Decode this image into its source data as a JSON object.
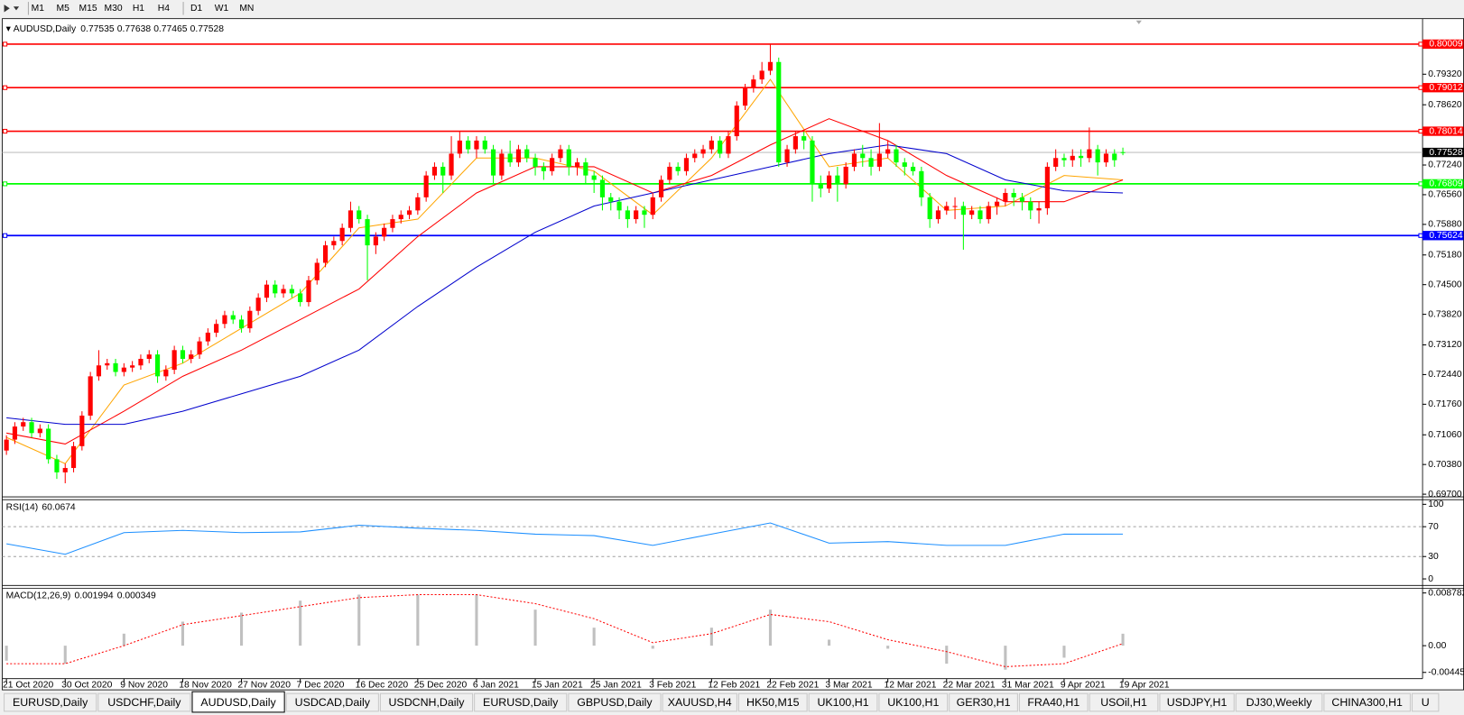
{
  "toolbar": {
    "timeframes": [
      "M1",
      "M5",
      "M15",
      "M30",
      "H1",
      "H4",
      "D1",
      "W1",
      "MN"
    ]
  },
  "chart_data": {
    "type": "candlestick",
    "symbol": "AUDUSD,Daily",
    "up_color": "#ff0000",
    "down_color": "#00ff00",
    "xlim": [
      -0.5,
      168.7
    ],
    "xticks": [
      {
        "value": 0,
        "label": "21 Oct 2020"
      },
      {
        "value": 7,
        "label": "30 Oct 2020"
      },
      {
        "value": 14,
        "label": "9 Nov 2020"
      },
      {
        "value": 21,
        "label": "18 Nov 2020"
      },
      {
        "value": 28,
        "label": "27 Nov 2020"
      },
      {
        "value": 35,
        "label": "7 Dec 2020"
      },
      {
        "value": 42,
        "label": "16 Dec 2020"
      },
      {
        "value": 49,
        "label": "25 Dec 2020"
      },
      {
        "value": 56,
        "label": "6 Jan 2021"
      },
      {
        "value": 63,
        "label": "15 Jan 2021"
      },
      {
        "value": 70,
        "label": "25 Jan 2021"
      },
      {
        "value": 77,
        "label": "3 Feb 2021"
      },
      {
        "value": 84,
        "label": "12 Feb 2021"
      },
      {
        "value": 91,
        "label": "22 Feb 2021"
      },
      {
        "value": 98,
        "label": "3 Mar 2021"
      },
      {
        "value": 105,
        "label": "12 Mar 2021"
      },
      {
        "value": 112,
        "label": "22 Mar 2021"
      },
      {
        "value": 119,
        "label": "31 Mar 2021"
      },
      {
        "value": 126,
        "label": "9 Apr 2021"
      },
      {
        "value": 133,
        "label": "19 Apr 2021"
      }
    ],
    "ylim": [
      0.6966,
      0.8055
    ],
    "yticks": [
      {
        "value": 0.7932,
        "label": "0.79320"
      },
      {
        "value": 0.7862,
        "label": "0.78620"
      },
      {
        "value": 0.7724,
        "label": "0.77240"
      },
      {
        "value": 0.7656,
        "label": "0.76560"
      },
      {
        "value": 0.7588,
        "label": "0.75880"
      },
      {
        "value": 0.7518,
        "label": "0.75180"
      },
      {
        "value": 0.745,
        "label": "0.74500"
      },
      {
        "value": 0.7382,
        "label": "0.73820"
      },
      {
        "value": 0.7312,
        "label": "0.73120"
      },
      {
        "value": 0.7244,
        "label": "0.72440"
      },
      {
        "value": 0.7176,
        "label": "0.71760"
      },
      {
        "value": 0.7106,
        "label": "0.71060"
      },
      {
        "value": 0.7038,
        "label": "0.70380"
      },
      {
        "value": 0.697,
        "label": "0.69700"
      }
    ],
    "levels": [
      {
        "value": 0.80009,
        "color": "#ff0000"
      },
      {
        "value": 0.79012,
        "color": "#ff0000"
      },
      {
        "value": 0.78014,
        "color": "#ff0000"
      },
      {
        "value": 0.76809,
        "color": "#00ff00"
      },
      {
        "value": 0.75624,
        "color": "#0000ff"
      }
    ],
    "open": [
      0.707,
      0.7095,
      0.7125,
      0.7135,
      0.711,
      0.712,
      0.705,
      0.702,
      0.703,
      0.708,
      0.715,
      0.724,
      0.7265,
      0.727,
      0.725,
      0.726,
      0.7265,
      0.728,
      0.729,
      0.724,
      0.7255,
      0.73,
      0.728,
      0.729,
      0.732,
      0.734,
      0.736,
      0.738,
      0.737,
      0.735,
      0.739,
      0.742,
      0.745,
      0.743,
      0.744,
      0.743,
      0.741,
      0.746,
      0.75,
      0.754,
      0.755,
      0.758,
      0.762,
      0.76,
      0.754,
      0.756,
      0.758,
      0.76,
      0.761,
      0.762,
      0.765,
      0.77,
      0.772,
      0.77,
      0.775,
      0.778,
      0.776,
      0.778,
      0.776,
      0.77,
      0.775,
      0.773,
      0.776,
      0.774,
      0.772,
      0.771,
      0.774,
      0.776,
      0.772,
      0.773,
      0.77,
      0.769,
      0.765,
      0.764,
      0.762,
      0.76,
      0.762,
      0.761,
      0.765,
      0.769,
      0.772,
      0.771,
      0.774,
      0.775,
      0.776,
      0.778,
      0.775,
      0.779,
      0.786,
      0.79,
      0.792,
      0.794,
      0.796,
      0.773,
      0.776,
      0.779,
      0.778,
      0.768,
      0.767,
      0.77,
      0.768,
      0.772,
      0.775,
      0.774,
      0.772,
      0.775,
      0.776,
      0.773,
      0.772,
      0.771,
      0.765,
      0.76,
      0.762,
      0.763,
      0.763,
      0.761,
      0.762,
      0.76,
      0.763,
      0.764,
      0.766,
      0.765,
      0.764,
      0.762,
      0.7625,
      0.772,
      0.774,
      0.7735,
      0.7745,
      0.774,
      0.776,
      0.773,
      0.775,
      0.77535
    ],
    "high": [
      0.7105,
      0.7135,
      0.7145,
      0.7145,
      0.713,
      0.713,
      0.706,
      0.704,
      0.709,
      0.716,
      0.725,
      0.73,
      0.728,
      0.728,
      0.727,
      0.7275,
      0.729,
      0.73,
      0.73,
      0.7265,
      0.731,
      0.731,
      0.73,
      0.733,
      0.735,
      0.737,
      0.739,
      0.739,
      0.738,
      0.74,
      0.743,
      0.746,
      0.746,
      0.745,
      0.745,
      0.744,
      0.747,
      0.751,
      0.755,
      0.756,
      0.759,
      0.764,
      0.763,
      0.761,
      0.757,
      0.759,
      0.761,
      0.762,
      0.763,
      0.766,
      0.771,
      0.773,
      0.773,
      0.779,
      0.78,
      0.779,
      0.779,
      0.779,
      0.777,
      0.776,
      0.778,
      0.777,
      0.777,
      0.775,
      0.773,
      0.775,
      0.777,
      0.777,
      0.774,
      0.774,
      0.771,
      0.77,
      0.766,
      0.765,
      0.763,
      0.763,
      0.763,
      0.766,
      0.77,
      0.773,
      0.773,
      0.775,
      0.776,
      0.777,
      0.779,
      0.779,
      0.78,
      0.787,
      0.791,
      0.793,
      0.796,
      0.8001,
      0.797,
      0.777,
      0.78,
      0.78,
      0.779,
      0.77,
      0.771,
      0.772,
      0.773,
      0.776,
      0.777,
      0.776,
      0.782,
      0.778,
      0.777,
      0.774,
      0.773,
      0.772,
      0.766,
      0.763,
      0.764,
      0.765,
      0.764,
      0.763,
      0.763,
      0.764,
      0.765,
      0.767,
      0.767,
      0.766,
      0.765,
      0.764,
      0.773,
      0.776,
      0.775,
      0.776,
      0.776,
      0.781,
      0.777,
      0.776,
      0.776,
      0.77638
    ],
    "low": [
      0.706,
      0.7085,
      0.7115,
      0.71,
      0.71,
      0.704,
      0.7005,
      0.6995,
      0.702,
      0.707,
      0.714,
      0.723,
      0.7255,
      0.724,
      0.724,
      0.725,
      0.7255,
      0.727,
      0.7225,
      0.723,
      0.7245,
      0.727,
      0.727,
      0.728,
      0.731,
      0.733,
      0.735,
      0.736,
      0.734,
      0.734,
      0.738,
      0.741,
      0.742,
      0.742,
      0.742,
      0.74,
      0.74,
      0.745,
      0.749,
      0.753,
      0.754,
      0.757,
      0.759,
      0.746,
      0.752,
      0.755,
      0.757,
      0.759,
      0.76,
      0.761,
      0.764,
      0.769,
      0.766,
      0.769,
      0.774,
      0.775,
      0.774,
      0.775,
      0.768,
      0.769,
      0.772,
      0.772,
      0.773,
      0.77,
      0.769,
      0.77,
      0.773,
      0.77,
      0.77,
      0.768,
      0.766,
      0.762,
      0.762,
      0.76,
      0.758,
      0.759,
      0.758,
      0.76,
      0.764,
      0.768,
      0.77,
      0.77,
      0.773,
      0.774,
      0.775,
      0.774,
      0.774,
      0.778,
      0.785,
      0.789,
      0.791,
      0.793,
      0.772,
      0.772,
      0.775,
      0.776,
      0.764,
      0.765,
      0.766,
      0.764,
      0.767,
      0.771,
      0.772,
      0.77,
      0.771,
      0.774,
      0.772,
      0.77,
      0.77,
      0.763,
      0.758,
      0.759,
      0.761,
      0.76,
      0.753,
      0.76,
      0.759,
      0.759,
      0.761,
      0.763,
      0.763,
      0.762,
      0.76,
      0.759,
      0.761,
      0.771,
      0.772,
      0.772,
      0.772,
      0.773,
      0.77,
      0.772,
      0.772,
      0.77465
    ],
    "close": [
      0.7095,
      0.7125,
      0.7135,
      0.711,
      0.712,
      0.705,
      0.702,
      0.703,
      0.708,
      0.715,
      0.724,
      0.7265,
      0.727,
      0.725,
      0.726,
      0.7265,
      0.728,
      0.729,
      0.724,
      0.7255,
      0.73,
      0.728,
      0.729,
      0.732,
      0.734,
      0.736,
      0.738,
      0.737,
      0.735,
      0.739,
      0.742,
      0.745,
      0.743,
      0.744,
      0.743,
      0.741,
      0.746,
      0.75,
      0.754,
      0.755,
      0.758,
      0.762,
      0.76,
      0.754,
      0.756,
      0.758,
      0.76,
      0.761,
      0.762,
      0.765,
      0.77,
      0.772,
      0.77,
      0.775,
      0.778,
      0.776,
      0.778,
      0.776,
      0.77,
      0.775,
      0.773,
      0.776,
      0.774,
      0.772,
      0.771,
      0.774,
      0.776,
      0.772,
      0.773,
      0.77,
      0.769,
      0.765,
      0.764,
      0.762,
      0.76,
      0.762,
      0.761,
      0.765,
      0.769,
      0.772,
      0.771,
      0.774,
      0.775,
      0.776,
      0.778,
      0.775,
      0.779,
      0.786,
      0.79,
      0.792,
      0.794,
      0.796,
      0.773,
      0.776,
      0.779,
      0.778,
      0.768,
      0.767,
      0.77,
      0.768,
      0.772,
      0.775,
      0.774,
      0.772,
      0.775,
      0.776,
      0.773,
      0.772,
      0.771,
      0.765,
      0.76,
      0.762,
      0.763,
      0.763,
      0.761,
      0.762,
      0.76,
      0.763,
      0.764,
      0.766,
      0.765,
      0.764,
      0.762,
      0.7625,
      0.772,
      0.774,
      0.7735,
      0.7745,
      0.774,
      0.776,
      0.773,
      0.775,
      0.7735,
      0.77528
    ],
    "indicator_x": [
      0,
      7,
      14,
      21,
      28,
      35,
      42,
      49,
      56,
      63,
      70,
      77,
      84,
      91,
      98,
      105,
      112,
      119,
      126,
      133
    ],
    "ma": [
      {
        "color": "#ffa500",
        "values": [
          0.71,
          0.704,
          0.722,
          0.727,
          0.735,
          0.743,
          0.758,
          0.76,
          0.774,
          0.774,
          0.771,
          0.761,
          0.774,
          0.792,
          0.772,
          0.774,
          0.762,
          0.763,
          0.77,
          0.769
        ]
      },
      {
        "color": "#ff0000",
        "values": [
          0.711,
          0.7085,
          0.716,
          0.724,
          0.73,
          0.737,
          0.744,
          0.756,
          0.766,
          0.772,
          0.772,
          0.766,
          0.77,
          0.777,
          0.783,
          0.778,
          0.77,
          0.764,
          0.764,
          0.769
        ]
      },
      {
        "color": "#0000cd",
        "values": [
          0.7145,
          0.713,
          0.713,
          0.716,
          0.72,
          0.724,
          0.73,
          0.74,
          0.749,
          0.757,
          0.763,
          0.766,
          0.769,
          0.772,
          0.775,
          0.777,
          0.775,
          0.769,
          0.7665,
          0.766
        ]
      }
    ],
    "rsi": {
      "title": "RSI(14)",
      "color": "#1e90ff",
      "ylim": [
        -8.75,
        106.25
      ],
      "yticks": [
        100,
        70,
        30,
        0
      ],
      "levels": [
        70,
        30
      ],
      "values": [
        47,
        33,
        62,
        65,
        62,
        63,
        72,
        68,
        65,
        60,
        58,
        45,
        60,
        75,
        48,
        50,
        45,
        45,
        60,
        60.0674
      ]
    },
    "macd": {
      "title": "MACD(12,26,9)",
      "hist_color": "#c0c0c0",
      "signal_color": "#ff0000",
      "ylim": [
        -0.00549,
        0.00957
      ],
      "yticks": [
        0.008782,
        {
          "value": 0,
          "label": "0.00"
        },
        -0.004451
      ],
      "histogram": [
        -0.0025,
        -0.003,
        0.002,
        0.004,
        0.0055,
        0.0075,
        0.0085,
        0.0085,
        0.0085,
        0.006,
        0.003,
        -0.0005,
        0.003,
        0.006,
        0.001,
        -0.0005,
        -0.003,
        -0.004,
        -0.002,
        0.001994
      ],
      "signal": [
        -0.003,
        -0.003,
        0.0,
        0.0035,
        0.005,
        0.0065,
        0.008,
        0.0085,
        0.0085,
        0.007,
        0.0045,
        0.0005,
        0.002,
        0.0052,
        0.004,
        0.001,
        -0.001,
        -0.0035,
        -0.003,
        0.000349
      ]
    }
  },
  "tabs": [
    "EURUSD,Daily",
    "USDCHF,Daily",
    "AUDUSD,Daily",
    "USDCAD,Daily",
    "USDCNH,Daily",
    "EURUSD,Daily",
    "GBPUSD,Daily",
    "XAUUSD,H4",
    "HK50,M15",
    "UK100,H1",
    "UK100,H1",
    "GER30,H1",
    "FRA40,H1",
    "USOil,H1",
    "USDJPY,H1",
    "DJ30,Weekly",
    "CHINA300,H1",
    "U"
  ],
  "active_tab": 2
}
